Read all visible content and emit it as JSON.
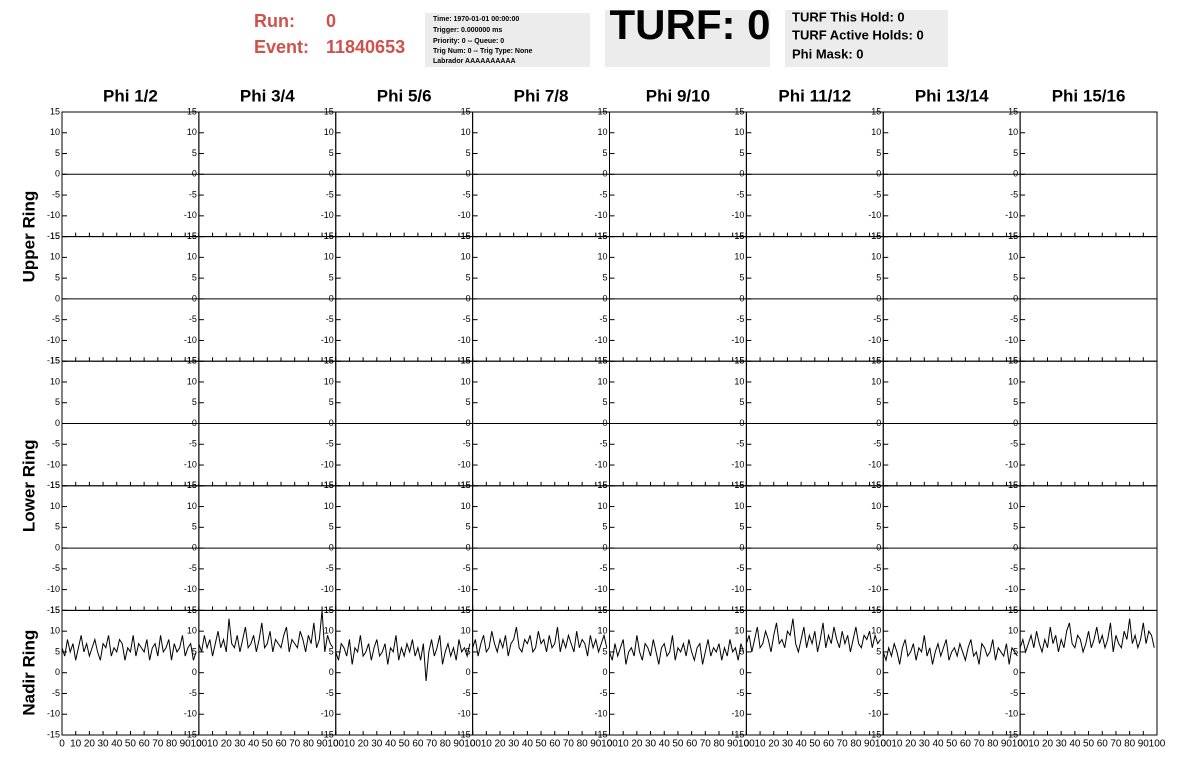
{
  "header": {
    "run_label": "Run:",
    "run": "0",
    "event_label": "Event:",
    "event": "11840653",
    "info": [
      "Time: 1970-01-01 00:00:00",
      "Trigger: 0.000000 ms",
      "Priority: 0 -- Queue: 0",
      "Trig Num: 0 -- Trig Type: None",
      "Labrador AAAAAAAAAA"
    ],
    "turf": "TURF: 0",
    "turf_info": [
      "TURF This Hold: 0",
      "TURF Active Holds: 0",
      "Phi Mask: 0"
    ]
  },
  "chart_data": {
    "type": "line",
    "columns": [
      "Phi 1/2",
      "Phi 3/4",
      "Phi 5/6",
      "Phi 7/8",
      "Phi 9/10",
      "Phi 11/12",
      "Phi 13/14",
      "Phi 15/16"
    ],
    "ring_labels": [
      "Upper Ring",
      "Lower Ring",
      "Nadir Ring"
    ],
    "x": [
      0,
      2,
      4,
      6,
      8,
      10,
      12,
      14,
      16,
      18,
      20,
      22,
      24,
      26,
      28,
      30,
      32,
      34,
      36,
      38,
      40,
      42,
      44,
      46,
      48,
      50,
      52,
      54,
      56,
      58,
      60,
      62,
      64,
      66,
      68,
      70,
      72,
      74,
      76,
      78,
      80,
      82,
      84,
      86,
      88,
      90,
      92,
      94,
      96,
      98
    ],
    "xlim": [
      0,
      100
    ],
    "xticks": [
      0,
      10,
      20,
      30,
      40,
      50,
      60,
      70,
      80,
      90,
      100
    ],
    "ylim": [
      -15,
      15
    ],
    "yticks": [
      -15,
      -10,
      -5,
      0,
      5,
      10,
      15
    ],
    "color": "#000000",
    "zero_line": true,
    "rows": [
      [
        null,
        null,
        null,
        null,
        null,
        null,
        null,
        null
      ],
      [
        null,
        null,
        null,
        null,
        null,
        null,
        null,
        null
      ],
      [
        null,
        null,
        null,
        null,
        null,
        null,
        null,
        null
      ],
      [
        null,
        null,
        null,
        null,
        null,
        null,
        null,
        null
      ],
      [
        [
          6,
          4,
          8,
          5,
          7,
          3,
          6,
          9,
          5,
          7,
          4,
          6,
          8,
          5,
          3,
          7,
          6,
          9,
          4,
          6,
          5,
          8,
          7,
          3,
          6,
          5,
          9,
          4,
          7,
          6,
          5,
          8,
          3,
          6,
          7,
          4,
          9,
          5,
          6,
          8,
          3,
          7,
          5,
          6,
          9,
          4,
          6,
          7,
          3,
          5
        ],
        [
          7,
          5,
          9,
          6,
          8,
          4,
          7,
          10,
          6,
          8,
          5,
          13,
          7,
          6,
          9,
          5,
          8,
          11,
          6,
          7,
          9,
          5,
          8,
          12,
          6,
          7,
          10,
          5,
          8,
          7,
          6,
          9,
          11,
          5,
          8,
          7,
          6,
          10,
          8,
          5,
          9,
          7,
          12,
          6,
          8,
          15,
          5,
          9,
          7,
          6
        ],
        [
          5,
          3,
          7,
          6,
          4,
          8,
          2,
          6,
          5,
          9,
          4,
          5,
          7,
          3,
          6,
          8,
          4,
          5,
          7,
          2,
          6,
          5,
          9,
          3,
          6,
          4,
          7,
          5,
          8,
          4,
          6,
          3,
          7,
          -2,
          5,
          8,
          4,
          6,
          9,
          2,
          5,
          7,
          4,
          6,
          3,
          8,
          5,
          6,
          4,
          7
        ],
        [
          6,
          8,
          4,
          7,
          9,
          5,
          6,
          10,
          7,
          5,
          8,
          6,
          9,
          4,
          7,
          8,
          11,
          6,
          5,
          8,
          7,
          9,
          5,
          6,
          10,
          7,
          8,
          5,
          9,
          6,
          7,
          11,
          5,
          8,
          6,
          9,
          7,
          5,
          10,
          6,
          8,
          7,
          4,
          9,
          6,
          8,
          5,
          7,
          9,
          6
        ],
        [
          5,
          3,
          7,
          4,
          6,
          8,
          2,
          5,
          6,
          4,
          9,
          5,
          3,
          7,
          6,
          4,
          8,
          5,
          2,
          6,
          7,
          4,
          5,
          9,
          3,
          6,
          5,
          7,
          4,
          8,
          5,
          3,
          6,
          7,
          2,
          5,
          8,
          4,
          6,
          5,
          7,
          3,
          6,
          4,
          8,
          5,
          6,
          3,
          7,
          5
        ],
        [
          7,
          9,
          5,
          8,
          11,
          6,
          7,
          10,
          8,
          5,
          9,
          12,
          7,
          8,
          6,
          10,
          9,
          13,
          7,
          5,
          8,
          11,
          6,
          9,
          7,
          10,
          5,
          8,
          12,
          6,
          9,
          7,
          11,
          8,
          6,
          10,
          7,
          9,
          5,
          8,
          11,
          7,
          6,
          9,
          8,
          10,
          6,
          9,
          7,
          8
        ],
        [
          5,
          3,
          6,
          4,
          7,
          5,
          2,
          6,
          8,
          4,
          5,
          7,
          3,
          6,
          5,
          9,
          4,
          6,
          2,
          5,
          7,
          4,
          6,
          8,
          3,
          5,
          6,
          4,
          7,
          5,
          3,
          6,
          8,
          4,
          5,
          2,
          7,
          6,
          4,
          5,
          8,
          3,
          6,
          5,
          4,
          7,
          2,
          6,
          5,
          4
        ],
        [
          6,
          8,
          5,
          7,
          9,
          6,
          10,
          7,
          5,
          8,
          6,
          11,
          7,
          9,
          5,
          8,
          6,
          10,
          12,
          7,
          6,
          9,
          8,
          5,
          7,
          10,
          6,
          8,
          11,
          7,
          9,
          6,
          8,
          12,
          5,
          9,
          7,
          6,
          10,
          8,
          13,
          7,
          9,
          6,
          8,
          12,
          7,
          10,
          9,
          6
        ]
      ]
    ]
  }
}
